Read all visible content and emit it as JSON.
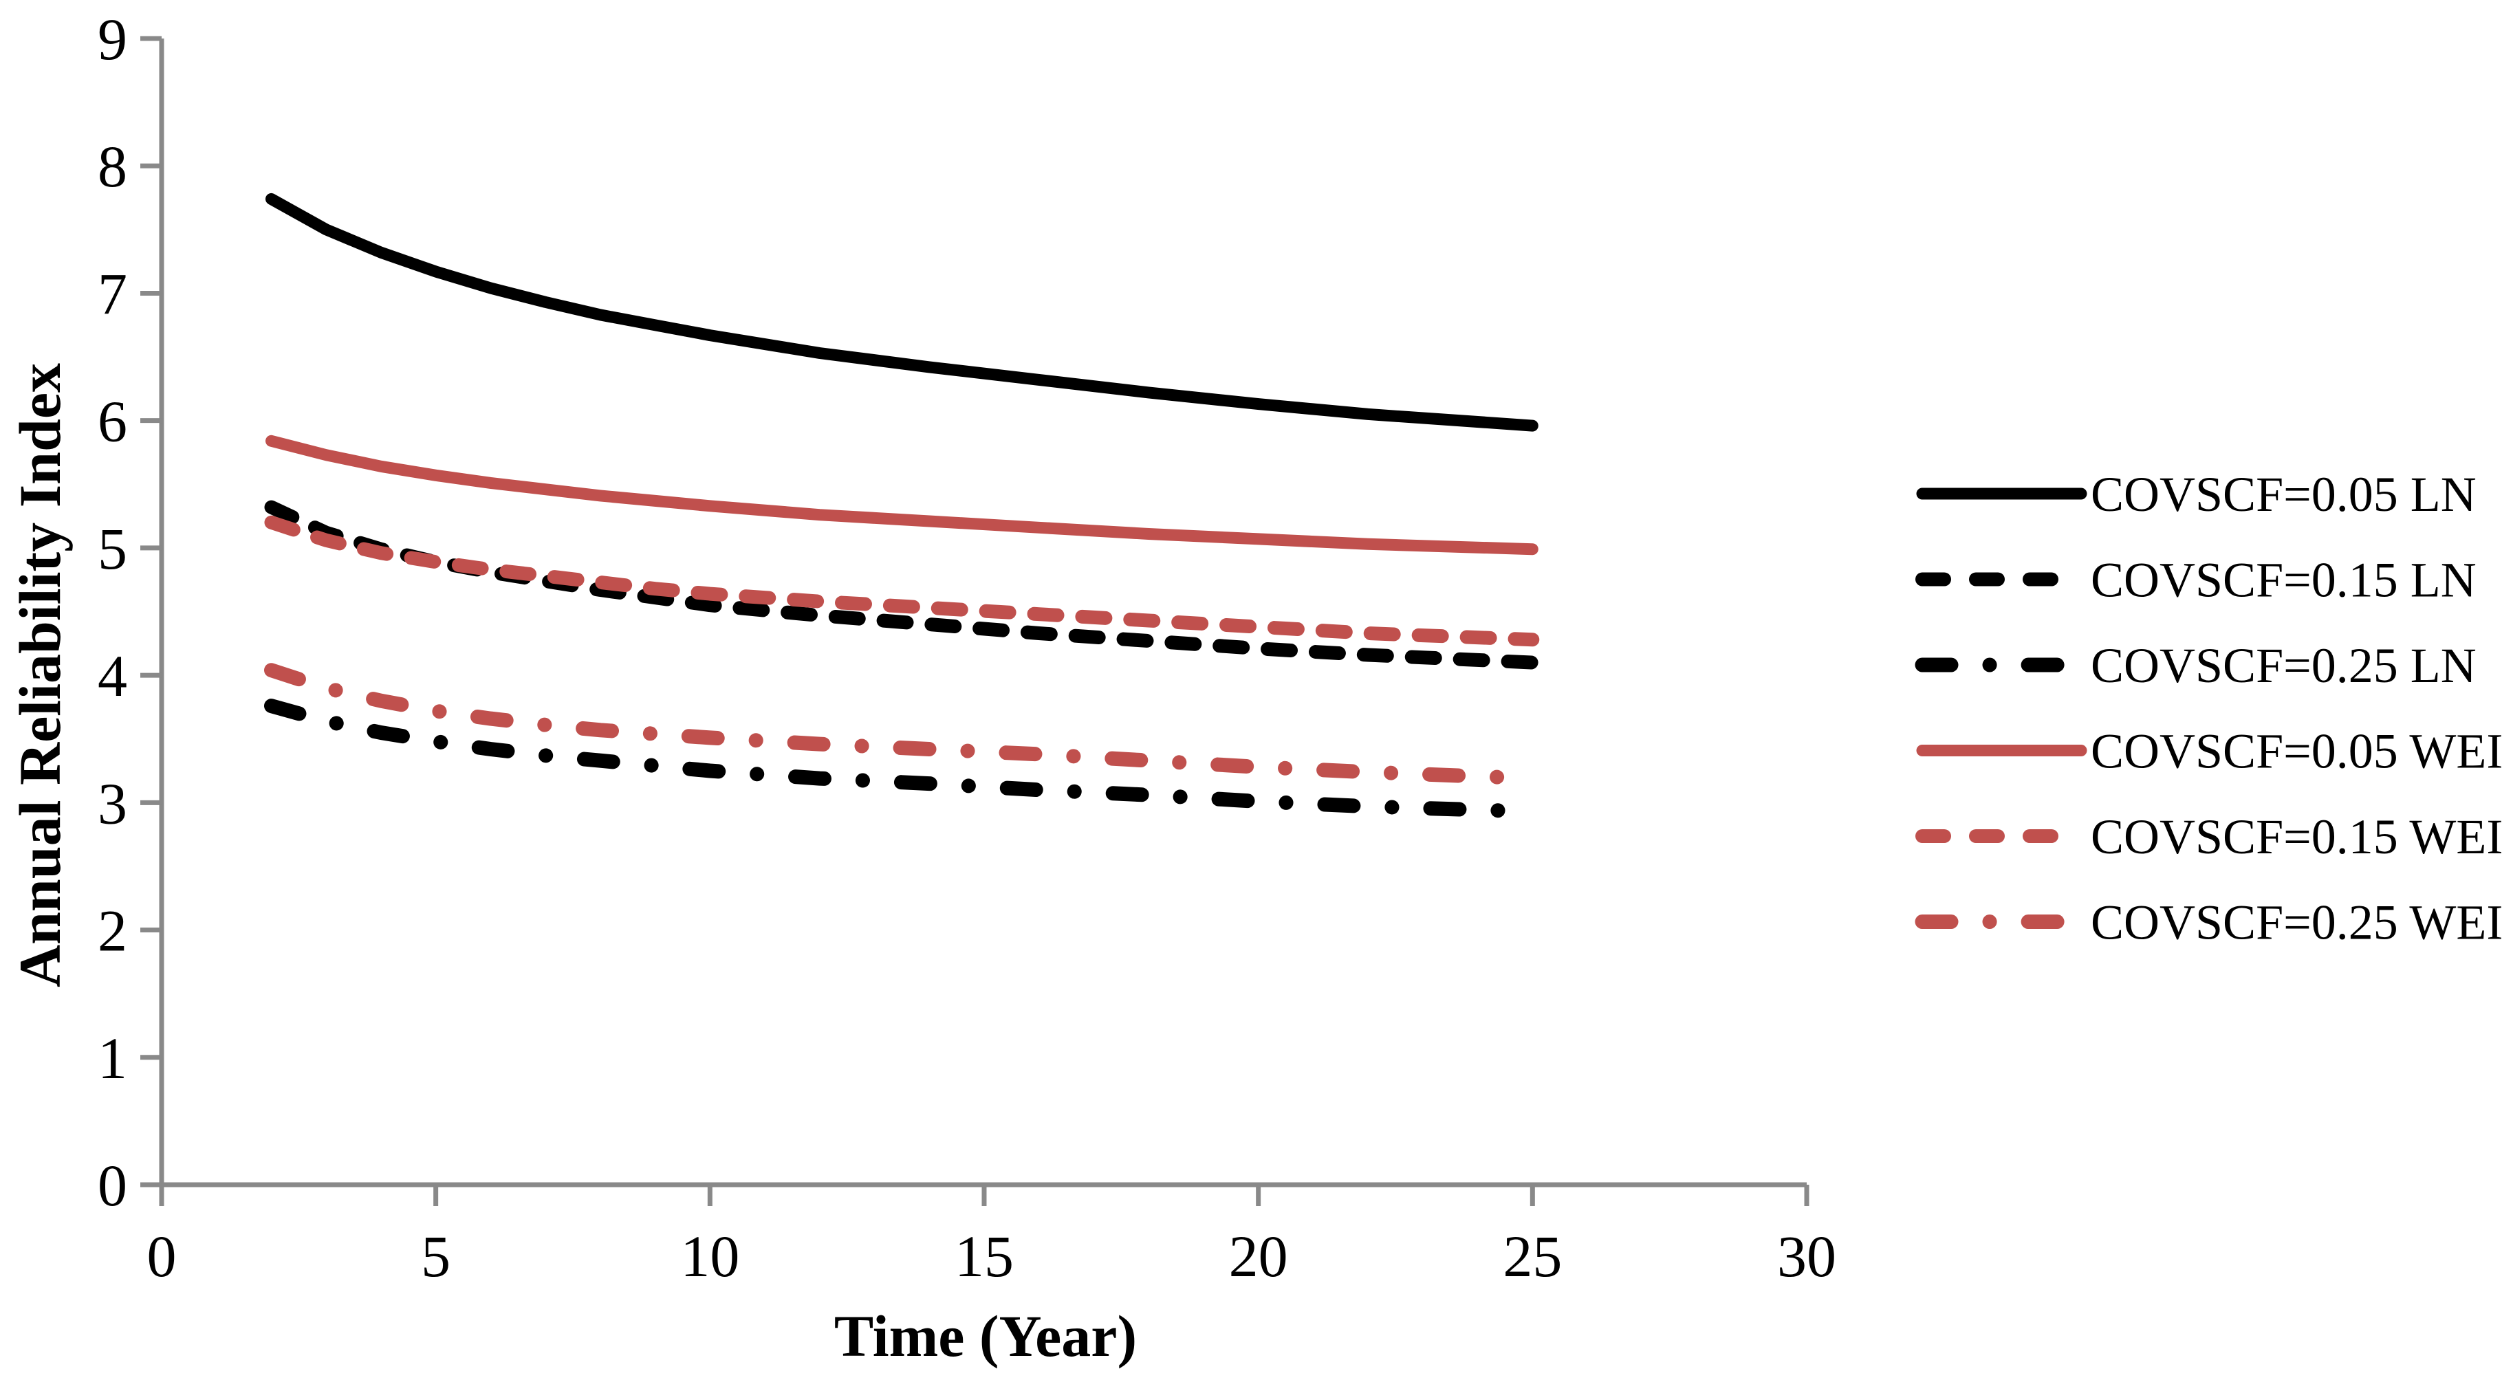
{
  "chart_data": {
    "type": "line",
    "title": "",
    "xlabel": "Time (Year)",
    "ylabel": "Annual Reliability Index",
    "xlim": [
      0,
      30
    ],
    "ylim": [
      0,
      9
    ],
    "xticks": [
      0,
      5,
      10,
      15,
      20,
      25,
      30
    ],
    "yticks": [
      0,
      1,
      2,
      3,
      4,
      5,
      6,
      7,
      8,
      9
    ],
    "grid": false,
    "legend_position": "right",
    "axis_color": "#898989",
    "black": "#000000",
    "red": "#C0504D",
    "x": [
      2,
      3,
      4,
      5,
      6,
      7,
      8,
      9,
      10,
      12,
      14,
      16,
      18,
      20,
      22,
      25
    ],
    "series": [
      {
        "name": "COVSCF=0.05 LN",
        "color": "#000000",
        "style": "solid",
        "values": [
          7.74,
          7.5,
          7.32,
          7.17,
          7.04,
          6.93,
          6.83,
          6.75,
          6.67,
          6.53,
          6.42,
          6.32,
          6.22,
          6.13,
          6.05,
          5.96
        ]
      },
      {
        "name": "COVSCF=0.15 LN",
        "color": "#000000",
        "style": "dashed",
        "values": [
          5.32,
          5.12,
          4.99,
          4.89,
          4.81,
          4.74,
          4.67,
          4.61,
          4.55,
          4.47,
          4.4,
          4.33,
          4.27,
          4.21,
          4.16,
          4.1
        ]
      },
      {
        "name": "COVSCF=0.25 LN",
        "color": "#000000",
        "style": "dashdot",
        "values": [
          3.76,
          3.64,
          3.55,
          3.48,
          3.42,
          3.37,
          3.33,
          3.29,
          3.25,
          3.19,
          3.15,
          3.1,
          3.06,
          3.01,
          2.97,
          2.93
        ]
      },
      {
        "name": "COVSCF=0.05 WEI",
        "color": "#C0504D",
        "style": "solid",
        "values": [
          5.84,
          5.73,
          5.64,
          5.57,
          5.51,
          5.46,
          5.41,
          5.37,
          5.33,
          5.26,
          5.21,
          5.16,
          5.11,
          5.07,
          5.03,
          4.99
        ]
      },
      {
        "name": "COVSCF=0.15 WEI",
        "color": "#C0504D",
        "style": "dashed",
        "values": [
          5.2,
          5.06,
          4.96,
          4.89,
          4.83,
          4.78,
          4.73,
          4.68,
          4.64,
          4.58,
          4.53,
          4.48,
          4.43,
          4.38,
          4.33,
          4.28
        ]
      },
      {
        "name": "COVSCF=0.25 WEI",
        "color": "#C0504D",
        "style": "dashdot",
        "values": [
          4.04,
          3.9,
          3.8,
          3.72,
          3.66,
          3.61,
          3.57,
          3.54,
          3.51,
          3.46,
          3.42,
          3.38,
          3.33,
          3.28,
          3.24,
          3.19
        ]
      }
    ]
  }
}
